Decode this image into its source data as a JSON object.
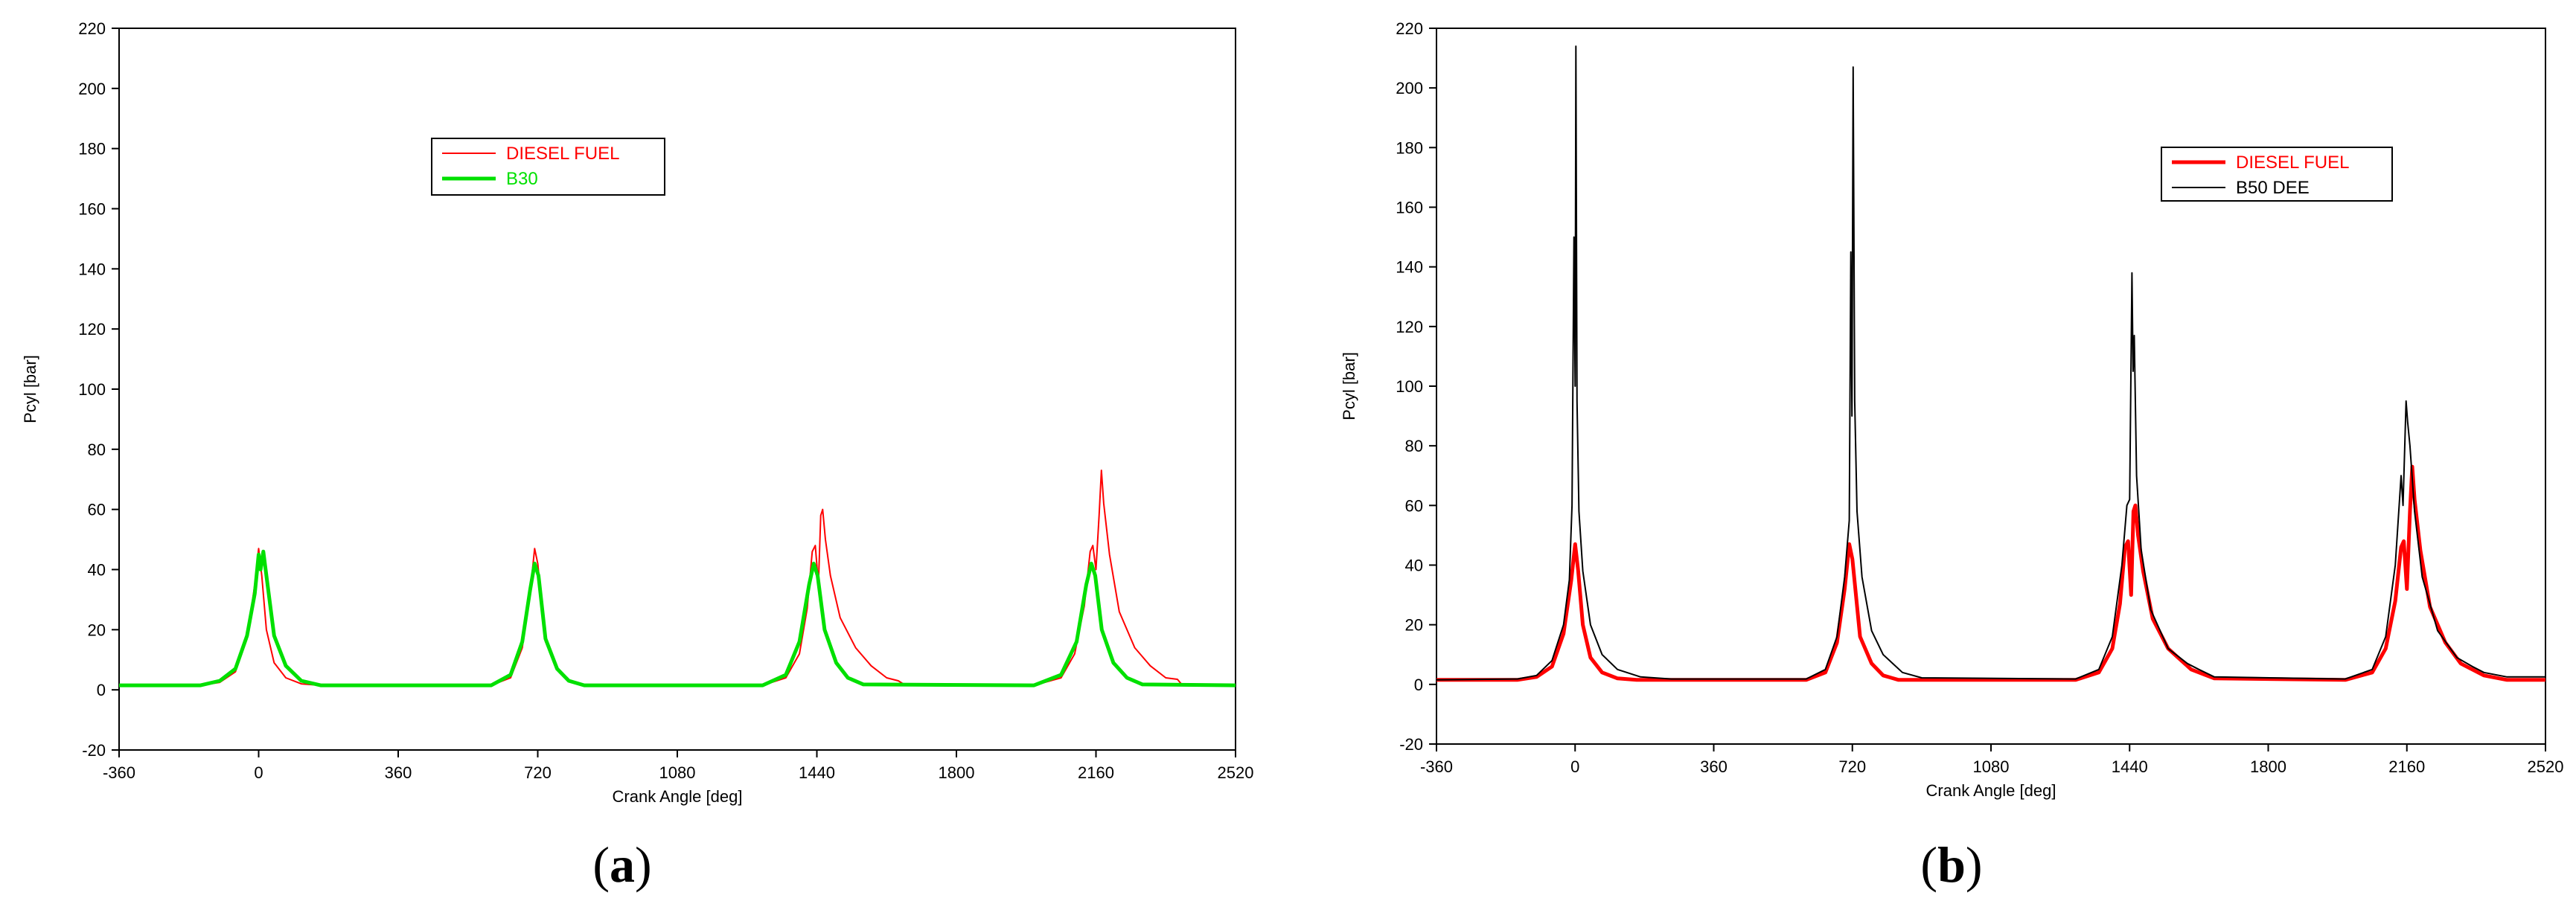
{
  "chart_data": [
    {
      "type": "line",
      "panel_label": "a",
      "xlabel": "Crank Angle [deg]",
      "ylabel": "Pcyl [bar]",
      "xlim": [
        -360,
        2520
      ],
      "ylim": [
        -20,
        220
      ],
      "xticks": [
        "-360",
        "0",
        "360",
        "720",
        "1080",
        "1440",
        "1800",
        "2160",
        "2520"
      ],
      "yticks": [
        "-20",
        "0",
        "20",
        "40",
        "60",
        "80",
        "100",
        "120",
        "140",
        "160",
        "180",
        "200",
        "220"
      ],
      "legend_position": "upper-center",
      "series": [
        {
          "name": "DIESEL FUEL",
          "color": "#ff0000",
          "points": [
            [
              -360,
              1.5
            ],
            [
              -150,
              1.5
            ],
            [
              -100,
              2.5
            ],
            [
              -60,
              6
            ],
            [
              -30,
              17
            ],
            [
              -10,
              35
            ],
            [
              0,
              47
            ],
            [
              8,
              38
            ],
            [
              20,
              20
            ],
            [
              40,
              9
            ],
            [
              70,
              4
            ],
            [
              110,
              2
            ],
            [
              160,
              1.5
            ],
            [
              220,
              1.5
            ],
            [
              600,
              1.5
            ],
            [
              650,
              4
            ],
            [
              680,
              14
            ],
            [
              700,
              32
            ],
            [
              712,
              47
            ],
            [
              720,
              42
            ],
            [
              740,
              16
            ],
            [
              770,
              7
            ],
            [
              800,
              3
            ],
            [
              840,
              1.5
            ],
            [
              1300,
              1.5
            ],
            [
              1360,
              4
            ],
            [
              1395,
              12
            ],
            [
              1415,
              27
            ],
            [
              1428,
              46
            ],
            [
              1436,
              48
            ],
            [
              1444,
              35
            ],
            [
              1450,
              58
            ],
            [
              1455,
              60
            ],
            [
              1462,
              50
            ],
            [
              1475,
              38
            ],
            [
              1500,
              24
            ],
            [
              1540,
              14
            ],
            [
              1580,
              8
            ],
            [
              1620,
              4
            ],
            [
              1650,
              3
            ],
            [
              1665,
              1.8
            ],
            [
              2000,
              1.5
            ],
            [
              2070,
              4
            ],
            [
              2105,
              12
            ],
            [
              2130,
              28
            ],
            [
              2145,
              46
            ],
            [
              2152,
              48
            ],
            [
              2160,
              40
            ],
            [
              2168,
              58
            ],
            [
              2174,
              73
            ],
            [
              2180,
              62
            ],
            [
              2195,
              45
            ],
            [
              2220,
              26
            ],
            [
              2260,
              14
            ],
            [
              2300,
              8
            ],
            [
              2340,
              4
            ],
            [
              2370,
              3.5
            ],
            [
              2380,
              2
            ],
            [
              2520,
              1.5
            ]
          ]
        },
        {
          "name": "B30",
          "color": "#00e000",
          "points": [
            [
              -360,
              1.5
            ],
            [
              -150,
              1.5
            ],
            [
              -100,
              3
            ],
            [
              -60,
              7
            ],
            [
              -30,
              18
            ],
            [
              -10,
              32
            ],
            [
              0,
              45
            ],
            [
              5,
              40
            ],
            [
              12,
              46
            ],
            [
              20,
              38
            ],
            [
              40,
              18
            ],
            [
              70,
              8
            ],
            [
              110,
              3
            ],
            [
              160,
              1.5
            ],
            [
              600,
              1.5
            ],
            [
              650,
              5
            ],
            [
              680,
              16
            ],
            [
              700,
              33
            ],
            [
              712,
              42
            ],
            [
              722,
              38
            ],
            [
              740,
              17
            ],
            [
              770,
              7
            ],
            [
              800,
              3
            ],
            [
              840,
              1.5
            ],
            [
              1300,
              1.5
            ],
            [
              1360,
              5
            ],
            [
              1395,
              16
            ],
            [
              1420,
              35
            ],
            [
              1432,
              42
            ],
            [
              1442,
              38
            ],
            [
              1460,
              20
            ],
            [
              1490,
              9
            ],
            [
              1520,
              4
            ],
            [
              1560,
              1.8
            ],
            [
              2000,
              1.5
            ],
            [
              2070,
              5
            ],
            [
              2110,
              16
            ],
            [
              2135,
              35
            ],
            [
              2148,
              42
            ],
            [
              2158,
              38
            ],
            [
              2175,
              20
            ],
            [
              2205,
              9
            ],
            [
              2240,
              4
            ],
            [
              2280,
              1.8
            ],
            [
              2520,
              1.5
            ]
          ]
        }
      ]
    },
    {
      "type": "line",
      "panel_label": "b",
      "xlabel": "Crank Angle [deg]",
      "ylabel": "Pcyl [bar]",
      "xlim": [
        -360,
        2520
      ],
      "ylim": [
        -20,
        220
      ],
      "xticks": [
        "-360",
        "0",
        "360",
        "720",
        "1080",
        "1440",
        "1800",
        "2160",
        "2520"
      ],
      "yticks": [
        "-20",
        "0",
        "20",
        "40",
        "60",
        "80",
        "100",
        "120",
        "140",
        "160",
        "180",
        "200",
        "220"
      ],
      "legend_position": "upper-right",
      "series": [
        {
          "name": "DIESEL FUEL",
          "color": "#ff0000",
          "points": [
            [
              -360,
              1.5
            ],
            [
              -150,
              1.5
            ],
            [
              -100,
              2.5
            ],
            [
              -60,
              6
            ],
            [
              -30,
              17
            ],
            [
              -10,
              35
            ],
            [
              0,
              47
            ],
            [
              8,
              38
            ],
            [
              20,
              20
            ],
            [
              40,
              9
            ],
            [
              70,
              4
            ],
            [
              110,
              2
            ],
            [
              160,
              1.5
            ],
            [
              600,
              1.5
            ],
            [
              650,
              4
            ],
            [
              680,
              14
            ],
            [
              700,
              32
            ],
            [
              712,
              47
            ],
            [
              720,
              42
            ],
            [
              740,
              16
            ],
            [
              770,
              7
            ],
            [
              800,
              3
            ],
            [
              840,
              1.5
            ],
            [
              1300,
              1.5
            ],
            [
              1360,
              4
            ],
            [
              1395,
              12
            ],
            [
              1415,
              27
            ],
            [
              1428,
              46
            ],
            [
              1436,
              48
            ],
            [
              1444,
              30
            ],
            [
              1450,
              58
            ],
            [
              1455,
              60
            ],
            [
              1462,
              50
            ],
            [
              1475,
              38
            ],
            [
              1500,
              22
            ],
            [
              1540,
              12
            ],
            [
              1600,
              5
            ],
            [
              1660,
              2
            ],
            [
              2000,
              1.5
            ],
            [
              2070,
              4
            ],
            [
              2105,
              12
            ],
            [
              2130,
              28
            ],
            [
              2145,
              46
            ],
            [
              2152,
              48
            ],
            [
              2160,
              32
            ],
            [
              2168,
              58
            ],
            [
              2174,
              73
            ],
            [
              2180,
              62
            ],
            [
              2195,
              45
            ],
            [
              2220,
              26
            ],
            [
              2260,
              14
            ],
            [
              2300,
              7
            ],
            [
              2360,
              3
            ],
            [
              2420,
              1.5
            ],
            [
              2520,
              1.5
            ]
          ]
        },
        {
          "name": "B50 DEE",
          "color": "#000000",
          "points": [
            [
              -360,
              1.5
            ],
            [
              -150,
              1.8
            ],
            [
              -100,
              3
            ],
            [
              -60,
              8
            ],
            [
              -30,
              20
            ],
            [
              -15,
              35
            ],
            [
              -8,
              60
            ],
            [
              -3,
              150
            ],
            [
              0,
              100
            ],
            [
              2,
              214
            ],
            [
              5,
              95
            ],
            [
              10,
              58
            ],
            [
              20,
              38
            ],
            [
              40,
              20
            ],
            [
              70,
              10
            ],
            [
              110,
              5
            ],
            [
              170,
              2.5
            ],
            [
              250,
              1.8
            ],
            [
              600,
              1.8
            ],
            [
              650,
              5
            ],
            [
              680,
              16
            ],
            [
              700,
              36
            ],
            [
              712,
              55
            ],
            [
              716,
              145
            ],
            [
              719,
              90
            ],
            [
              722,
              207
            ],
            [
              726,
              95
            ],
            [
              732,
              58
            ],
            [
              745,
              36
            ],
            [
              770,
              18
            ],
            [
              800,
              10
            ],
            [
              850,
              4
            ],
            [
              900,
              2.2
            ],
            [
              1300,
              1.8
            ],
            [
              1360,
              5
            ],
            [
              1395,
              16
            ],
            [
              1420,
              40
            ],
            [
              1433,
              60
            ],
            [
              1440,
              62
            ],
            [
              1446,
              138
            ],
            [
              1449,
              105
            ],
            [
              1452,
              117
            ],
            [
              1458,
              70
            ],
            [
              1470,
              45
            ],
            [
              1495,
              25
            ],
            [
              1540,
              12
            ],
            [
              1590,
              7
            ],
            [
              1620,
              5
            ],
            [
              1660,
              2.5
            ],
            [
              2000,
              1.8
            ],
            [
              2070,
              5
            ],
            [
              2105,
              16
            ],
            [
              2130,
              40
            ],
            [
              2145,
              70
            ],
            [
              2150,
              60
            ],
            [
              2158,
              95
            ],
            [
              2162,
              88
            ],
            [
              2168,
              80
            ],
            [
              2180,
              58
            ],
            [
              2200,
              36
            ],
            [
              2240,
              18
            ],
            [
              2290,
              9
            ],
            [
              2330,
              6
            ],
            [
              2360,
              4
            ],
            [
              2420,
              2.5
            ],
            [
              2520,
              2.5
            ]
          ]
        }
      ]
    }
  ]
}
